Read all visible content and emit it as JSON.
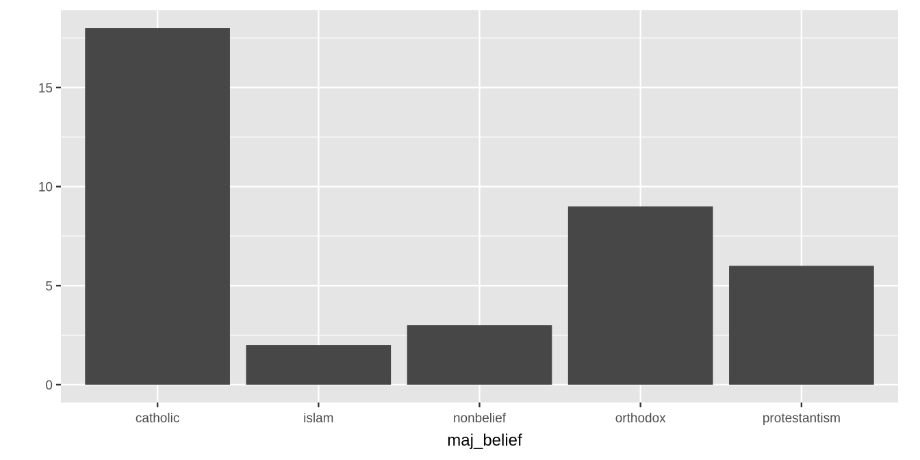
{
  "chart_data": {
    "type": "bar",
    "title": "",
    "xlabel": "maj_belief",
    "ylabel": "",
    "categories": [
      "catholic",
      "islam",
      "nonbelief",
      "orthodox",
      "protestantism"
    ],
    "values": [
      18,
      2,
      3,
      9,
      6
    ],
    "ylim": [
      -0.9,
      18.9
    ],
    "yticks": [
      0,
      5,
      10,
      15
    ],
    "grid": true,
    "legend": "none",
    "colors": {
      "bar": "#474747",
      "panel": "#e5e5e5",
      "grid": "#ffffff",
      "tick": "#333333"
    }
  }
}
